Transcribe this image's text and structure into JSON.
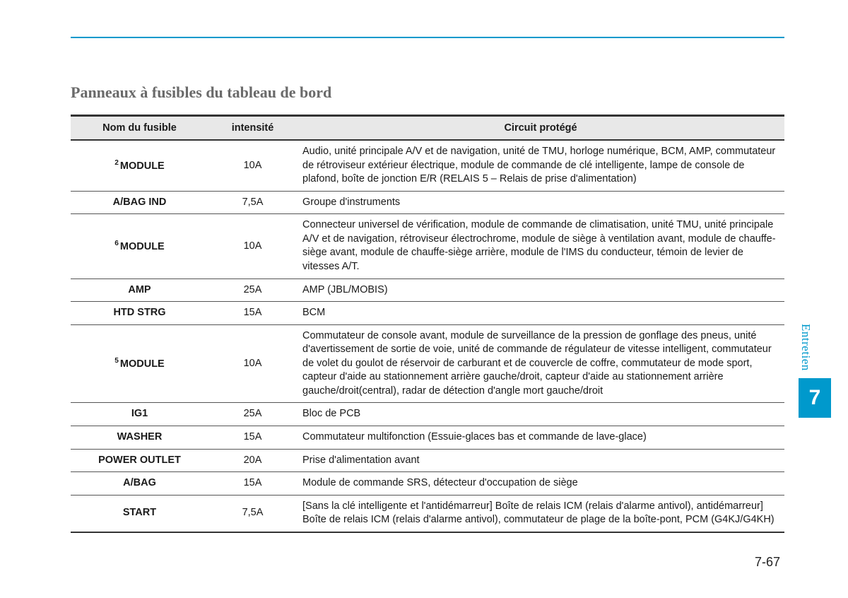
{
  "page": {
    "section_title": "Panneaux à fusibles du tableau de bord",
    "page_number": "7-67",
    "side_tab": {
      "label": "Entretien",
      "number": "7"
    }
  },
  "table": {
    "headers": {
      "name": "Nom du fusible",
      "amperage": "intensité",
      "circuit": "Circuit protégé"
    },
    "rows": [
      {
        "sup": "2",
        "name": "MODULE",
        "amp": "10A",
        "desc": "Audio, unité principale A/V et de navigation, unité de TMU, horloge numérique, BCM, AMP, commutateur de rétroviseur extérieur électrique, module de commande de clé intelligente, lampe de console de plafond, boîte de jonction E/R (RELAIS 5 – Relais de prise d'alimentation)"
      },
      {
        "sup": "",
        "name": "A/BAG IND",
        "amp": "7,5A",
        "desc": "Groupe d'instruments"
      },
      {
        "sup": "6",
        "name": "MODULE",
        "amp": "10A",
        "desc": "Connecteur universel de vérification, module de commande de climatisation, unité TMU, unité principale A/V et de navigation, rétroviseur électrochrome, module de siège à ventilation avant, module de chauffe-siège avant, module de chauffe-siège arrière, module de l'IMS du conducteur, témoin de levier de vitesses A/T."
      },
      {
        "sup": "",
        "name": "AMP",
        "amp": "25A",
        "desc": "AMP (JBL/MOBIS)"
      },
      {
        "sup": "",
        "name": "HTD STRG",
        "amp": "15A",
        "desc": "BCM"
      },
      {
        "sup": "5",
        "name": "MODULE",
        "amp": "10A",
        "desc": "Commutateur de console avant, module de surveillance de la pression de gonflage des pneus, unité d'avertissement de sortie de voie, unité de commande de régulateur de vitesse intelligent, commutateur de volet du goulot de réservoir de carburant et de couvercle de coffre, commutateur de mode sport, capteur d'aide au stationnement arrière gauche/droit, capteur d'aide au stationnement arrière gauche/droit(central), radar de détection d'angle mort gauche/droit"
      },
      {
        "sup": "",
        "name": "IG1",
        "amp": "25A",
        "desc": "Bloc de PCB"
      },
      {
        "sup": "",
        "name": "WASHER",
        "amp": "15A",
        "desc": "Commutateur multifonction (Essuie-glaces bas et commande de lave-glace)"
      },
      {
        "sup": "",
        "name": "POWER OUTLET",
        "amp": "20A",
        "desc": "Prise d'alimentation avant"
      },
      {
        "sup": "",
        "name": "A/BAG",
        "amp": "15A",
        "desc": "Module de commande SRS, détecteur d'occupation de siège"
      },
      {
        "sup": "",
        "name": "START",
        "amp": "7,5A",
        "desc": "[Sans la clé intelligente et l'antidémarreur] Boîte de relais ICM (relais d'alarme antivol), antidémarreur] Boîte de relais ICM (relais d'alarme antivol), commutateur de plage de la boîte-pont, PCM (G4KJ/G4KH)"
      }
    ]
  },
  "colors": {
    "accent": "#0099cc",
    "header_bg": "#e8e8e8",
    "text": "#1a1a1a",
    "title_gray": "#6a6a6a"
  }
}
